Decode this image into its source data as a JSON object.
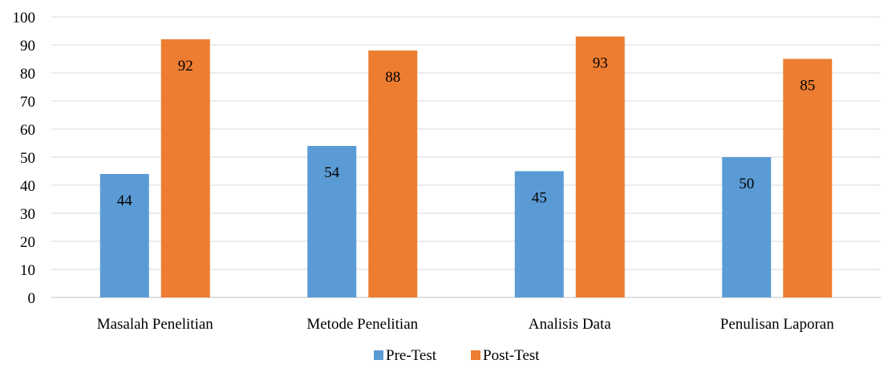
{
  "chart_data": {
    "type": "bar",
    "categories": [
      "Masalah Penelitian",
      "Metode Penelitian",
      "Analisis Data",
      "Penulisan Laporan"
    ],
    "series": [
      {
        "name": "Pre-Test",
        "values": [
          44,
          54,
          45,
          50
        ],
        "color": "#5B9BD5"
      },
      {
        "name": "Post-Test",
        "values": [
          92,
          88,
          93,
          85
        ],
        "color": "#ED7D31"
      }
    ],
    "title": "",
    "xlabel": "",
    "ylabel": "",
    "ylim": [
      0,
      100
    ],
    "yticks": [
      0,
      10,
      20,
      30,
      40,
      50,
      60,
      70,
      80,
      90,
      100
    ],
    "grid": true,
    "legend": "bottom-center",
    "data_labels": true
  }
}
